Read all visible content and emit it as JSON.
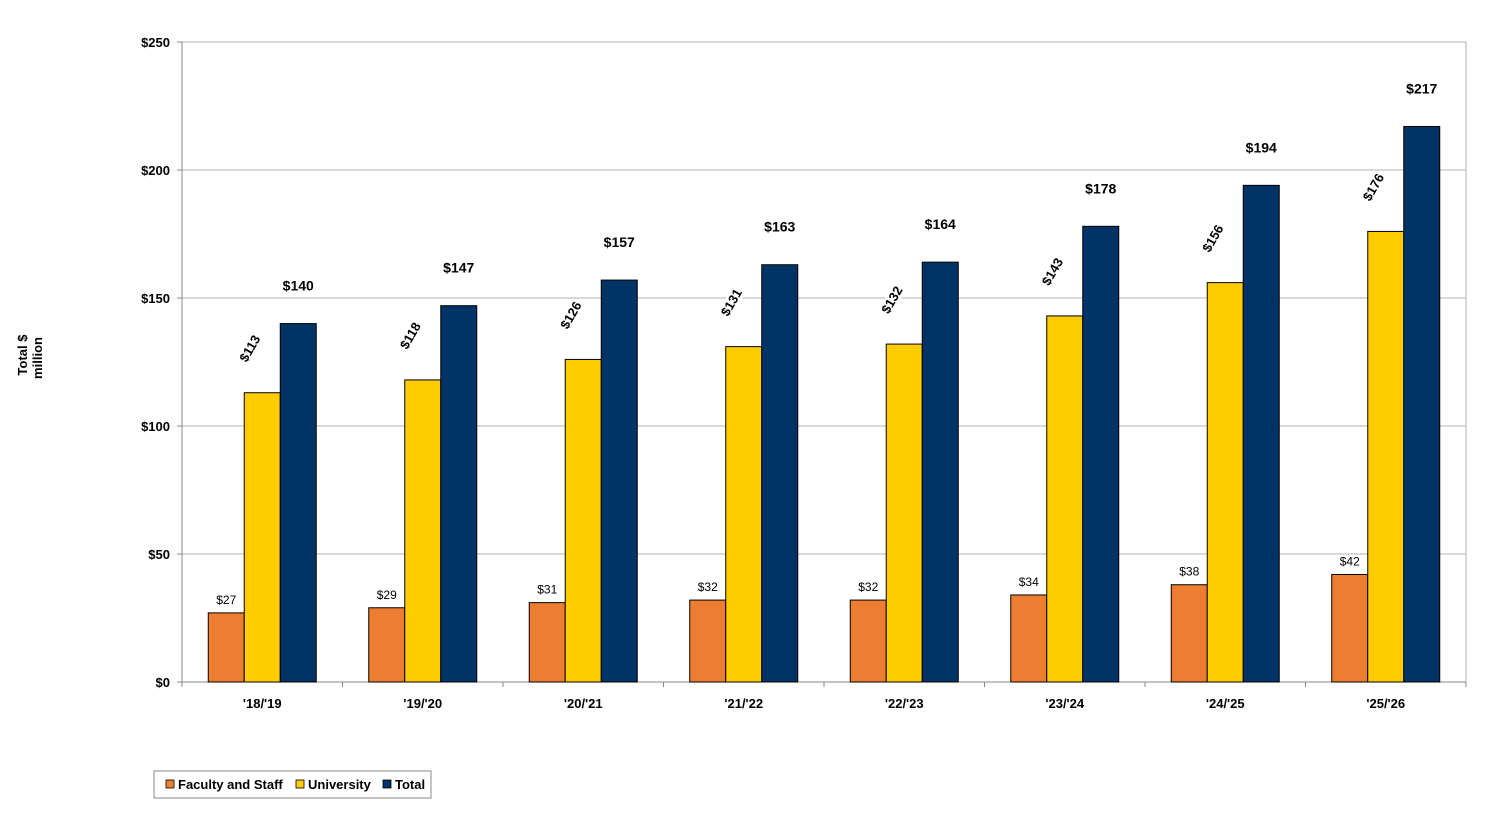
{
  "chart_data": {
    "type": "bar",
    "categories": [
      "'18/'19",
      "'19/'20",
      "'20/'21",
      "'21/'22",
      "'22/'23",
      "'23/'24",
      "'24/'25",
      "'25/'26"
    ],
    "series": [
      {
        "name": "Faculty and Staff",
        "color": "#ED7D31",
        "values": [
          27,
          29,
          31,
          32,
          32,
          34,
          38,
          42
        ],
        "labels": [
          "$27",
          "$29",
          "$31",
          "$32",
          "$32",
          "$34",
          "$38",
          "$42"
        ]
      },
      {
        "name": "University",
        "color": "#FFCC00",
        "values": [
          113,
          118,
          126,
          131,
          132,
          143,
          156,
          176
        ],
        "labels": [
          "$113",
          "$118",
          "$126",
          "$131",
          "$132",
          "$143",
          "$156",
          "$176"
        ]
      },
      {
        "name": "Total",
        "color": "#003366",
        "values": [
          140,
          147,
          157,
          163,
          164,
          178,
          194,
          217
        ],
        "labels": [
          "$140",
          "$147",
          "$157",
          "$163",
          "$164",
          "$178",
          "$194",
          "$217"
        ]
      }
    ],
    "ylabel_line1": "Total $",
    "ylabel_line2": "million",
    "ylim": [
      0,
      250
    ],
    "yticks": [
      0,
      50,
      100,
      150,
      200,
      250
    ],
    "ytick_labels": [
      "$0",
      "$50",
      "$100",
      "$150",
      "$200",
      "$250"
    ],
    "grid": true,
    "legend_position": "bottom-left"
  }
}
